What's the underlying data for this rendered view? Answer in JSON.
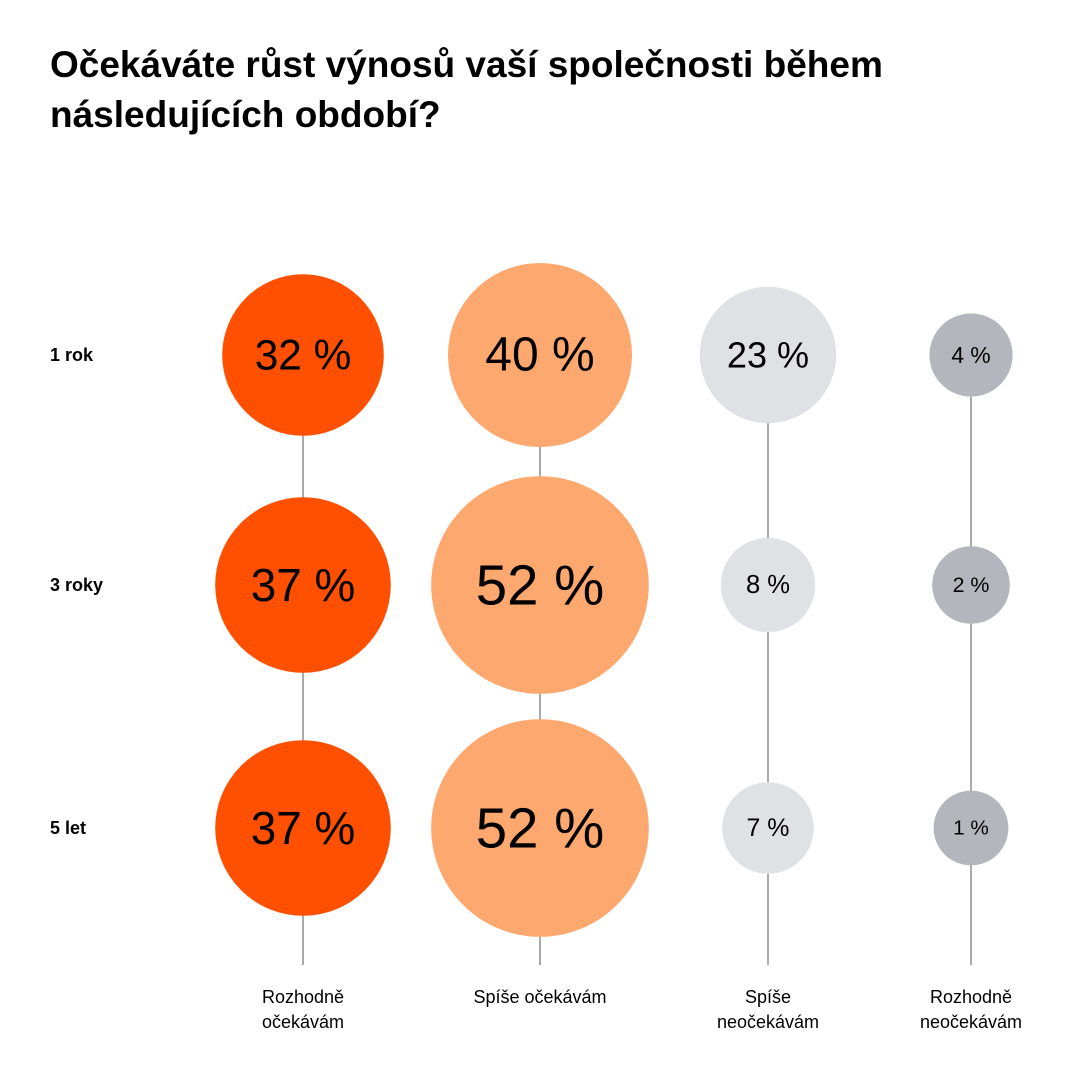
{
  "chart_data": {
    "type": "bubble",
    "title": "Očekáváte růst výnosů vaší společnosti během následujících období?",
    "rows": [
      "1 rok",
      "3 roky",
      "5 let"
    ],
    "series": [
      {
        "name": "Rozhodně očekávám",
        "color": "#fe5000",
        "values": [
          32,
          37,
          37
        ],
        "value_labels": [
          "32 %",
          "37 %",
          "37 %"
        ]
      },
      {
        "name": "Spíše očekávám",
        "color": "#fda86f",
        "values": [
          40,
          52,
          52
        ],
        "value_labels": [
          "40 %",
          "52 %",
          "52 %"
        ]
      },
      {
        "name": "Spíše neočekávám",
        "color": "#dfe1e4",
        "values": [
          23,
          8,
          7
        ],
        "value_labels": [
          "23 %",
          "8 %",
          "7 %"
        ]
      },
      {
        "name": "Rozhodně neočekávám",
        "color": "#b3b7bd",
        "values": [
          4,
          2,
          1
        ],
        "value_labels": [
          "4 %",
          "2 %",
          "1 %"
        ]
      }
    ]
  }
}
